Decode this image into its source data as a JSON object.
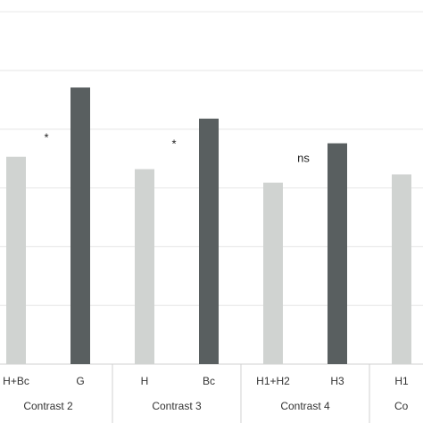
{
  "chart_data": {
    "type": "bar",
    "categories": [
      "H+Bc",
      "G",
      "H",
      "Bc",
      "H1+H2",
      "H3",
      "H1"
    ],
    "values": [
      3.53,
      4.71,
      3.32,
      4.18,
      3.09,
      3.76,
      3.23
    ],
    "colors": [
      "#d0d3d1",
      "#595f60",
      "#d0d3d1",
      "#595f60",
      "#d0d3d1",
      "#595f60",
      "#d0d3d1"
    ],
    "groups": [
      "Contrast 2",
      "Contrast 3",
      "Contrast 4",
      "Co"
    ],
    "annotations": [
      "*",
      "*",
      "ns"
    ],
    "ylim": [
      0,
      6.2
    ],
    "gridlines": [
      1,
      2,
      3,
      4,
      5,
      6
    ],
    "grid": true
  }
}
